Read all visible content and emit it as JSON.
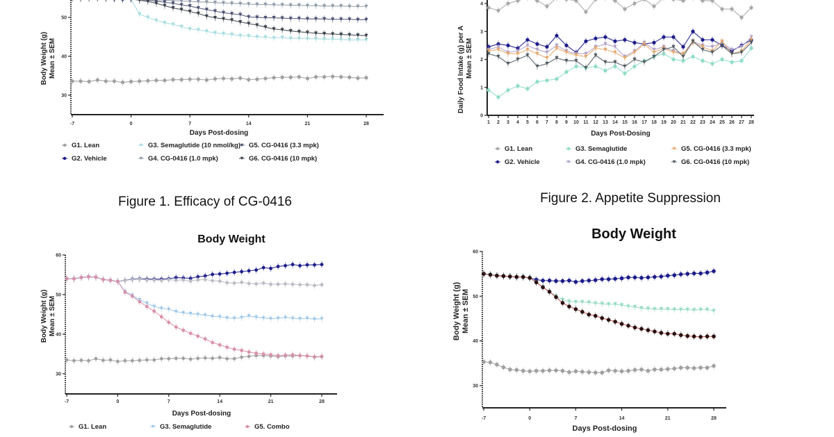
{
  "captions": {
    "figure1": "Figure 1. Efficacy of CG-0416",
    "figure2": "Figure 2. Appetite Suppression"
  },
  "chart_data": [
    {
      "type": "line",
      "title": "",
      "xlabel": "Days Post-dosing",
      "ylabel": "Body Weight (g)",
      "ylabel2": "Mean ± SEM",
      "xlim": [
        -7,
        28
      ],
      "ylim": [
        25,
        55
      ],
      "xticks": [
        -7,
        0,
        7,
        14,
        21,
        28
      ],
      "yticks": [
        30,
        40,
        50
      ],
      "grid": false,
      "legend_position": "bottom",
      "x": [
        -7,
        -6,
        -5,
        -4,
        -3,
        -2,
        -1,
        0,
        1,
        2,
        3,
        4,
        5,
        6,
        7,
        8,
        9,
        10,
        11,
        12,
        13,
        14,
        15,
        16,
        17,
        18,
        19,
        20,
        21,
        22,
        23,
        24,
        25,
        26,
        27,
        28
      ],
      "series": [
        {
          "name": "G1. Lean",
          "color": "#a0a0a0",
          "marker": "circle",
          "values": [
            33.6,
            33.6,
            33.5,
            33.9,
            33.6,
            33.6,
            33.3,
            33.5,
            33.6,
            33.7,
            33.8,
            33.8,
            34.0,
            34.0,
            34.1,
            34.1,
            33.9,
            34.2,
            34.3,
            34.2,
            34.4,
            34.0,
            34.1,
            34.3,
            34.5,
            34.6,
            34.6,
            34.7,
            34.3,
            34.7,
            34.7,
            34.8,
            34.7,
            34.6,
            34.4,
            34.5
          ]
        },
        {
          "name": "G2. Vehicle",
          "color": "#1c1c8a",
          "marker": "circle",
          "values": [
            55.0,
            54.9,
            55.0,
            55.1,
            55.0,
            54.8,
            54.7,
            54.8,
            55.0,
            55.2,
            55.4,
            55.5,
            55.7,
            55.8,
            56.0,
            56.1,
            56.2,
            56.3,
            56.4,
            56.5,
            56.6,
            56.7,
            56.8,
            56.9,
            57.0,
            57.1,
            57.2,
            57.3,
            57.3,
            57.4,
            57.5,
            57.6,
            57.7,
            57.8,
            57.9,
            58.0
          ]
        },
        {
          "name": "G3. Semaglutide (10 nmol/kg)",
          "color": "#a6dce0",
          "marker": "triangle",
          "values": [
            55.0,
            54.8,
            54.9,
            55.0,
            54.8,
            54.7,
            54.6,
            54.7,
            50.8,
            50.0,
            49.2,
            48.6,
            48.2,
            47.6,
            47.0,
            46.8,
            46.4,
            46.0,
            45.8,
            45.6,
            45.3,
            45.2,
            45.0,
            44.9,
            44.7,
            44.8,
            44.6,
            44.6,
            44.5,
            44.5,
            44.4,
            44.4,
            44.3,
            44.2,
            44.2,
            44.2
          ]
        },
        {
          "name": "G4. CG-0416 (1.0 mpk)",
          "color": "#8e9aa8",
          "marker": "triangle",
          "values": [
            55.0,
            54.9,
            55.0,
            55.1,
            55.0,
            54.9,
            54.7,
            54.8,
            54.8,
            54.6,
            54.5,
            54.4,
            54.3,
            54.2,
            54.1,
            54.0,
            53.9,
            53.8,
            53.7,
            53.6,
            53.5,
            53.4,
            53.3,
            53.3,
            53.2,
            53.2,
            53.1,
            53.1,
            53.0,
            53.0,
            52.9,
            52.9,
            52.9,
            52.8,
            52.8,
            52.8
          ]
        },
        {
          "name": "G5. CG-0416 (3.3 mpk)",
          "color": "#4a5070",
          "marker": "triangle",
          "values": [
            55.0,
            54.9,
            55.0,
            55.0,
            54.9,
            54.8,
            54.7,
            54.7,
            54.6,
            54.4,
            54.2,
            53.9,
            53.6,
            53.2,
            52.9,
            52.4,
            52.0,
            51.6,
            51.2,
            50.9,
            50.7,
            50.1,
            50.0,
            49.9,
            49.9,
            49.8,
            49.7,
            49.7,
            49.6,
            49.6,
            49.6,
            49.5,
            49.5,
            49.5,
            49.4,
            49.4
          ]
        },
        {
          "name": "G6. CG-0416 (10 mpk)",
          "color": "#3a4048",
          "marker": "triangle",
          "values": [
            55.0,
            54.9,
            55.0,
            55.0,
            54.9,
            54.8,
            54.7,
            54.7,
            54.4,
            54.1,
            53.6,
            53.0,
            52.4,
            52.0,
            51.5,
            51.0,
            50.3,
            49.9,
            49.6,
            49.3,
            48.8,
            48.4,
            48.0,
            47.5,
            47.0,
            46.8,
            46.5,
            46.3,
            46.1,
            45.9,
            45.8,
            45.7,
            45.6,
            45.5,
            45.4,
            45.3
          ]
        }
      ]
    },
    {
      "type": "line",
      "title": "",
      "xlabel": "Days Post-Dosing",
      "ylabel": "Daily Food Intake (g) per A",
      "ylabel2": "Mean ± SEM",
      "xlim": [
        1,
        28
      ],
      "ylim": [
        0,
        4
      ],
      "xticks": [
        1,
        2,
        3,
        4,
        5,
        6,
        7,
        8,
        9,
        10,
        11,
        12,
        13,
        14,
        15,
        16,
        17,
        18,
        19,
        20,
        21,
        22,
        23,
        24,
        25,
        26,
        27,
        28
      ],
      "yticks": [
        0,
        1,
        2,
        3,
        4
      ],
      "grid": false,
      "legend_position": "bottom",
      "x": [
        1,
        2,
        3,
        4,
        5,
        6,
        7,
        8,
        9,
        10,
        11,
        12,
        13,
        14,
        15,
        16,
        17,
        18,
        19,
        20,
        21,
        22,
        23,
        24,
        25,
        26,
        27,
        28
      ],
      "series": [
        {
          "name": "G1. Lean",
          "color": "#a8a8a8",
          "marker": "circle",
          "values": [
            3.85,
            3.75,
            4.0,
            4.1,
            4.2,
            4.1,
            3.9,
            4.2,
            4.15,
            4.1,
            3.7,
            4.15,
            4.2,
            4.1,
            3.8,
            4.0,
            4.15,
            3.9,
            4.2,
            4.15,
            4.1,
            4.2,
            4.1,
            4.1,
            3.8,
            3.8,
            3.5,
            3.85
          ]
        },
        {
          "name": "G2. Vehicle",
          "color": "#1c1c8a",
          "marker": "circle",
          "values": [
            2.45,
            2.55,
            2.5,
            2.4,
            2.7,
            2.55,
            2.45,
            2.85,
            2.5,
            2.25,
            2.65,
            2.75,
            2.8,
            2.65,
            2.7,
            2.6,
            2.55,
            2.6,
            2.8,
            2.8,
            2.45,
            3.0,
            2.7,
            2.7,
            2.5,
            2.3,
            2.5,
            2.7
          ]
        },
        {
          "name": "G3. Semaglutide",
          "color": "#8fdcc8",
          "marker": "circle",
          "values": [
            0.9,
            0.65,
            0.9,
            1.05,
            0.95,
            1.2,
            1.25,
            1.3,
            1.55,
            1.75,
            1.7,
            1.75,
            1.6,
            1.75,
            1.5,
            1.75,
            1.95,
            2.1,
            2.2,
            2.0,
            1.95,
            2.1,
            1.95,
            1.85,
            2.0,
            1.9,
            1.95,
            2.4
          ]
        },
        {
          "name": "G4. CG-0416 (1.0 mpk)",
          "color": "#b0a0c8",
          "marker": "triangle",
          "values": [
            2.35,
            2.45,
            2.25,
            2.3,
            2.5,
            2.35,
            2.25,
            2.5,
            2.3,
            2.2,
            2.2,
            2.45,
            2.55,
            2.45,
            2.1,
            2.3,
            2.6,
            2.35,
            2.45,
            2.3,
            2.2,
            2.65,
            2.5,
            2.45,
            2.6,
            2.35,
            2.45,
            2.8
          ]
        },
        {
          "name": "G5. CG-0416 (3.3 mpk)",
          "color": "#e8a86a",
          "marker": "triangle",
          "values": [
            2.3,
            2.35,
            2.2,
            2.2,
            2.35,
            2.2,
            2.05,
            2.4,
            2.25,
            2.15,
            2.1,
            2.4,
            2.35,
            2.25,
            2.05,
            2.25,
            2.55,
            2.25,
            2.4,
            2.25,
            2.2,
            2.6,
            2.45,
            2.3,
            2.65,
            2.2,
            2.3,
            2.7
          ]
        },
        {
          "name": "G6. CG-0416 (10 mpk)",
          "color": "#505a60",
          "marker": "triangle",
          "values": [
            2.2,
            2.1,
            1.85,
            2.0,
            2.15,
            1.75,
            1.85,
            2.05,
            1.95,
            1.95,
            1.7,
            2.15,
            1.9,
            1.9,
            1.75,
            2.0,
            1.9,
            2.1,
            2.35,
            2.45,
            2.1,
            2.65,
            2.35,
            2.25,
            2.5,
            2.2,
            2.25,
            2.6
          ]
        }
      ]
    },
    {
      "type": "line",
      "title": "Body Weight",
      "xlabel": "Days Post-dosing",
      "ylabel": "Body Weight (g)",
      "ylabel2": "Mean ± SEM",
      "xlim": [
        -7,
        28
      ],
      "ylim": [
        25,
        60
      ],
      "xticks": [
        -7,
        0,
        7,
        14,
        21,
        28
      ],
      "yticks": [
        30,
        40,
        50,
        60
      ],
      "grid": false,
      "legend_position": "bottom",
      "x": [
        -7,
        -6,
        -5,
        -4,
        -3,
        -2,
        -1,
        0,
        1,
        2,
        3,
        4,
        5,
        6,
        7,
        8,
        9,
        10,
        11,
        12,
        13,
        14,
        15,
        16,
        17,
        18,
        19,
        20,
        21,
        22,
        23,
        24,
        25,
        26,
        27,
        28
      ],
      "series": [
        {
          "name": "G1. Lean",
          "color": "#a0a0a0",
          "marker": "circle",
          "values": [
            33.5,
            33.3,
            33.4,
            33.3,
            33.8,
            33.4,
            33.5,
            33.1,
            33.3,
            33.3,
            33.4,
            33.5,
            33.5,
            33.8,
            33.8,
            33.9,
            33.9,
            33.7,
            33.9,
            34.0,
            33.9,
            34.1,
            33.8,
            33.8,
            34.2,
            34.4,
            34.6,
            34.6,
            34.5,
            34.3,
            34.5,
            34.5,
            34.6,
            34.5,
            34.2,
            34.3
          ]
        },
        {
          "name": "",
          "color": "#1c1c8a",
          "marker": "circle",
          "values": [
            54.0,
            54.0,
            54.3,
            54.5,
            54.4,
            53.8,
            53.6,
            53.3,
            53.6,
            53.9,
            54.0,
            53.9,
            53.9,
            53.9,
            54.0,
            54.3,
            54.2,
            54.1,
            54.5,
            54.7,
            55.1,
            55.2,
            55.4,
            55.6,
            55.8,
            56.0,
            56.2,
            56.8,
            56.6,
            57.1,
            57.3,
            57.6,
            57.3,
            57.5,
            57.5,
            57.6
          ]
        },
        {
          "name": "G3. Semaglutide",
          "color": "#9cc6e6",
          "marker": "triangle",
          "values": [
            54.0,
            54.0,
            54.3,
            54.5,
            54.4,
            53.8,
            53.6,
            53.3,
            50.8,
            49.8,
            48.7,
            47.8,
            47.0,
            46.5,
            46.3,
            45.7,
            45.4,
            45.2,
            45.0,
            44.8,
            44.5,
            44.4,
            44.1,
            44.0,
            44.2,
            44.6,
            44.3,
            44.1,
            43.9,
            44.0,
            44.2,
            44.0,
            43.9,
            44.0,
            43.8,
            43.9
          ]
        },
        {
          "name": "",
          "color": "#bcbcc4",
          "marker": "circle",
          "values": [
            54.0,
            54.0,
            54.3,
            54.5,
            54.4,
            53.8,
            53.6,
            53.3,
            53.6,
            53.8,
            53.9,
            53.7,
            53.7,
            53.6,
            53.8,
            53.6,
            53.7,
            53.4,
            53.7,
            53.8,
            53.5,
            53.4,
            53.0,
            52.9,
            53.1,
            52.8,
            52.7,
            52.9,
            52.6,
            52.6,
            52.7,
            52.6,
            52.5,
            52.5,
            52.3,
            52.5
          ]
        },
        {
          "name": "G5. Combo",
          "color": "#d890ac",
          "marker": "circle",
          "values": [
            54.0,
            54.0,
            54.3,
            54.5,
            54.4,
            53.8,
            53.6,
            53.3,
            50.6,
            49.6,
            48.2,
            47.0,
            45.8,
            44.4,
            43.0,
            41.8,
            41.0,
            40.2,
            39.5,
            38.8,
            37.9,
            37.3,
            36.7,
            36.2,
            35.9,
            35.5,
            35.2,
            35.0,
            34.8,
            34.6,
            34.7,
            34.8,
            34.6,
            34.5,
            34.3,
            34.4
          ]
        }
      ]
    },
    {
      "type": "line",
      "title": "Body Weight",
      "xlabel": "Days Post-dosing",
      "ylabel": "Body Weight  (g)",
      "ylabel2": "Mean ± SEM",
      "xlim": [
        -7,
        28
      ],
      "ylim": [
        25,
        60
      ],
      "xticks": [
        -7,
        0,
        7,
        14,
        21,
        28
      ],
      "yticks": [
        30,
        40,
        50,
        60
      ],
      "grid": false,
      "legend_position": "none",
      "x": [
        -7,
        -6,
        -5,
        -4,
        -3,
        -2,
        -1,
        0,
        1,
        2,
        3,
        4,
        5,
        6,
        7,
        8,
        9,
        10,
        11,
        12,
        13,
        14,
        15,
        16,
        17,
        18,
        19,
        20,
        21,
        22,
        23,
        24,
        25,
        26,
        27,
        28
      ],
      "series": [
        {
          "name": "",
          "color": "#a0a0a0",
          "marker": "circle",
          "values": [
            35.3,
            35.2,
            34.7,
            34.1,
            33.6,
            33.5,
            33.3,
            33.2,
            33.3,
            33.3,
            33.4,
            33.4,
            33.3,
            33.0,
            33.2,
            33.1,
            33.0,
            32.9,
            32.9,
            33.4,
            33.3,
            33.2,
            33.3,
            33.5,
            33.6,
            33.3,
            33.6,
            33.6,
            33.7,
            33.8,
            34.0,
            34.0,
            33.9,
            34.0,
            34.0,
            34.4
          ]
        },
        {
          "name": "",
          "color": "#1c1c8a",
          "marker": "circle",
          "values": [
            55.0,
            54.8,
            54.6,
            54.5,
            54.4,
            54.3,
            54.3,
            54.1,
            53.7,
            53.5,
            53.5,
            53.4,
            53.4,
            53.5,
            53.2,
            53.4,
            53.5,
            53.6,
            53.8,
            53.8,
            53.9,
            54.0,
            54.2,
            54.2,
            54.1,
            54.2,
            54.3,
            54.4,
            54.6,
            54.7,
            54.9,
            55.0,
            55.1,
            55.1,
            55.3,
            55.6
          ]
        },
        {
          "name": "",
          "color": "#9adcc6",
          "marker": "triangle",
          "values": [
            55.0,
            54.8,
            54.6,
            54.5,
            54.4,
            54.3,
            54.3,
            54.1,
            53.1,
            52.0,
            51.0,
            50.0,
            49.2,
            48.8,
            48.7,
            48.7,
            48.6,
            48.4,
            48.3,
            48.2,
            48.2,
            48.0,
            47.7,
            47.6,
            47.3,
            47.2,
            47.1,
            47.1,
            47.1,
            47.0,
            47.0,
            47.0,
            46.9,
            47.0,
            47.0,
            46.7
          ]
        },
        {
          "name": "",
          "color": "#2a1010",
          "line_color": "#c04848",
          "marker": "circle",
          "values": [
            55.0,
            54.8,
            54.6,
            54.5,
            54.4,
            54.3,
            54.3,
            54.1,
            53.1,
            52.0,
            51.0,
            49.8,
            48.5,
            47.7,
            47.1,
            46.5,
            45.9,
            45.6,
            45.1,
            44.7,
            44.3,
            43.8,
            43.4,
            43.0,
            42.7,
            42.4,
            42.1,
            41.8,
            41.6,
            41.6,
            41.3,
            41.1,
            41.0,
            40.9,
            41.0,
            41.0
          ]
        }
      ]
    }
  ]
}
